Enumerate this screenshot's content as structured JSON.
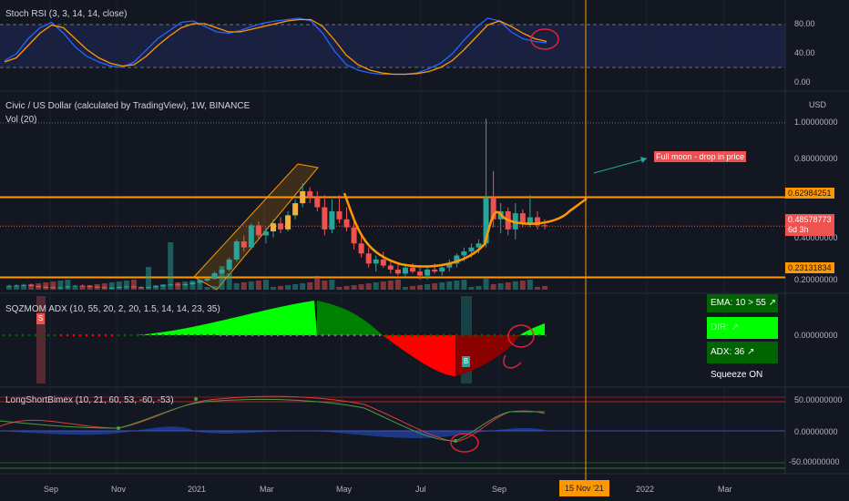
{
  "panels": {
    "stoch_rsi": {
      "title": "Stoch RSI (3, 3, 14, 14, close)",
      "ticks": [
        "80.00",
        "40.00",
        "0.00"
      ]
    },
    "price": {
      "title": "Civic / US Dollar (calculated by TradingView), 1W, BINANCE",
      "vol_label": "Vol (20)",
      "currency": "USD",
      "ticks": [
        "1.00000000",
        "0.80000000",
        "0.40000000",
        "0.20000000"
      ],
      "level_high": "0.62984251",
      "level_low": "0.23131834",
      "last_price": "0.48578773",
      "countdown": "6d 3h",
      "annotation": "Full moon - drop in price"
    },
    "sqzmom": {
      "title": "SQZMOM ADX (10, 55, 20, 2, 20, 1.5, 14, 14, 23, 35)",
      "tick": "0.00000000",
      "marker_s": "S",
      "marker_b": "B",
      "table": {
        "ema": "EMA: 10 > 55 ↗",
        "dir": "DIR: ↗",
        "adx": "ADX: 36 ↗",
        "squeeze": "Squeeze ON"
      }
    },
    "lsb": {
      "title": "LongShortBimex (10, 21, 60, 53, -60, -53)",
      "ticks": [
        "50.00000000",
        "0.00000000",
        "-50.00000000"
      ]
    }
  },
  "time_axis": {
    "labels": [
      "Sep",
      "Nov",
      "2021",
      "Mar",
      "May",
      "Jul",
      "Sep",
      "15 Nov '21",
      "2022",
      "Mar"
    ]
  },
  "colors": {
    "bg": "#131722",
    "up": "#26a69a",
    "down": "#ef5350",
    "level": "#ff9800",
    "annotation_bg": "#f05050",
    "sqz_green": "#00ff00",
    "sqz_red": "#ff0000"
  },
  "chart_data": {
    "type": "candlestick",
    "interval": "1W",
    "note_levels": {
      "resistance": 0.62984251,
      "support": 0.23131834,
      "last": 0.48578773
    },
    "price_ylim": [
      0.17,
      1.04
    ],
    "candles": [
      [
        0.188,
        0.195,
        0.182,
        0.189
      ],
      [
        0.189,
        0.196,
        0.185,
        0.191
      ],
      [
        0.191,
        0.199,
        0.186,
        0.194
      ],
      [
        0.194,
        0.2,
        0.186,
        0.188
      ],
      [
        0.188,
        0.192,
        0.181,
        0.184
      ],
      [
        0.184,
        0.189,
        0.178,
        0.182
      ],
      [
        0.182,
        0.186,
        0.176,
        0.179
      ],
      [
        0.179,
        0.185,
        0.175,
        0.181
      ],
      [
        0.181,
        0.19,
        0.178,
        0.186
      ],
      [
        0.186,
        0.193,
        0.182,
        0.19
      ],
      [
        0.19,
        0.196,
        0.185,
        0.188
      ],
      [
        0.188,
        0.192,
        0.182,
        0.185
      ],
      [
        0.185,
        0.189,
        0.179,
        0.182
      ],
      [
        0.182,
        0.186,
        0.176,
        0.179
      ],
      [
        0.179,
        0.184,
        0.174,
        0.18
      ],
      [
        0.18,
        0.187,
        0.176,
        0.184
      ],
      [
        0.184,
        0.19,
        0.18,
        0.186
      ],
      [
        0.186,
        0.191,
        0.18,
        0.183
      ],
      [
        0.183,
        0.187,
        0.177,
        0.18
      ],
      [
        0.18,
        0.186,
        0.176,
        0.183
      ],
      [
        0.183,
        0.19,
        0.179,
        0.187
      ],
      [
        0.187,
        0.196,
        0.183,
        0.192
      ],
      [
        0.192,
        0.2,
        0.188,
        0.196
      ],
      [
        0.196,
        0.203,
        0.19,
        0.193
      ],
      [
        0.193,
        0.2,
        0.188,
        0.197
      ],
      [
        0.197,
        0.21,
        0.193,
        0.205
      ],
      [
        0.205,
        0.22,
        0.2,
        0.215
      ],
      [
        0.215,
        0.23,
        0.21,
        0.224
      ],
      [
        0.224,
        0.26,
        0.22,
        0.252
      ],
      [
        0.252,
        0.28,
        0.245,
        0.27
      ],
      [
        0.27,
        0.33,
        0.26,
        0.32
      ],
      [
        0.32,
        0.42,
        0.31,
        0.41
      ],
      [
        0.41,
        0.44,
        0.36,
        0.38
      ],
      [
        0.38,
        0.5,
        0.37,
        0.49
      ],
      [
        0.49,
        0.51,
        0.42,
        0.44
      ],
      [
        0.44,
        0.48,
        0.4,
        0.46
      ],
      [
        0.46,
        0.52,
        0.43,
        0.5
      ],
      [
        0.5,
        0.53,
        0.45,
        0.47
      ],
      [
        0.47,
        0.56,
        0.46,
        0.54
      ],
      [
        0.54,
        0.62,
        0.52,
        0.6
      ],
      [
        0.6,
        0.7,
        0.58,
        0.66
      ],
      [
        0.66,
        0.68,
        0.6,
        0.63
      ],
      [
        0.63,
        0.66,
        0.56,
        0.58
      ],
      [
        0.58,
        0.64,
        0.44,
        0.47
      ],
      [
        0.47,
        0.62,
        0.45,
        0.56
      ],
      [
        0.56,
        0.64,
        0.5,
        0.52
      ],
      [
        0.52,
        0.58,
        0.46,
        0.48
      ],
      [
        0.48,
        0.51,
        0.37,
        0.4
      ],
      [
        0.4,
        0.44,
        0.33,
        0.35
      ],
      [
        0.35,
        0.38,
        0.28,
        0.3
      ],
      [
        0.3,
        0.34,
        0.26,
        0.32
      ],
      [
        0.32,
        0.36,
        0.28,
        0.29
      ],
      [
        0.29,
        0.31,
        0.25,
        0.27
      ],
      [
        0.27,
        0.3,
        0.24,
        0.25
      ],
      [
        0.25,
        0.29,
        0.23,
        0.28
      ],
      [
        0.28,
        0.3,
        0.25,
        0.26
      ],
      [
        0.26,
        0.29,
        0.22,
        0.24
      ],
      [
        0.24,
        0.28,
        0.22,
        0.27
      ],
      [
        0.27,
        0.3,
        0.25,
        0.26
      ],
      [
        0.26,
        0.29,
        0.24,
        0.28
      ],
      [
        0.28,
        0.32,
        0.26,
        0.3
      ],
      [
        0.3,
        0.35,
        0.28,
        0.34
      ],
      [
        0.34,
        0.38,
        0.31,
        0.36
      ],
      [
        0.36,
        0.4,
        0.33,
        0.38
      ],
      [
        0.38,
        0.42,
        0.35,
        0.4
      ],
      [
        0.4,
        1.02,
        0.38,
        0.63
      ],
      [
        0.63,
        0.76,
        0.48,
        0.52
      ],
      [
        0.52,
        0.6,
        0.45,
        0.56
      ],
      [
        0.56,
        0.58,
        0.44,
        0.47
      ],
      [
        0.47,
        0.6,
        0.42,
        0.55
      ],
      [
        0.55,
        0.57,
        0.48,
        0.5
      ],
      [
        0.5,
        0.64,
        0.48,
        0.53
      ],
      [
        0.53,
        0.56,
        0.47,
        0.49
      ],
      [
        0.49,
        0.52,
        0.47,
        0.486
      ]
    ],
    "stoch_k": [
      30,
      40,
      62,
      78,
      86,
      70,
      50,
      36,
      28,
      22,
      20,
      28,
      45,
      62,
      74,
      86,
      88,
      80,
      72,
      70,
      74,
      80,
      85,
      88,
      90,
      92,
      88,
      70,
      44,
      24,
      16,
      12,
      10,
      10,
      10,
      12,
      18,
      26,
      40,
      60,
      78,
      92,
      88,
      72,
      62,
      58,
      56
    ],
    "stoch_d": [
      28,
      34,
      52,
      70,
      82,
      78,
      62,
      46,
      34,
      26,
      22,
      24,
      36,
      52,
      66,
      78,
      84,
      84,
      78,
      72,
      72,
      76,
      80,
      84,
      88,
      90,
      90,
      80,
      60,
      38,
      24,
      16,
      12,
      10,
      10,
      11,
      14,
      20,
      30,
      46,
      64,
      82,
      88,
      80,
      70,
      62,
      58
    ]
  }
}
